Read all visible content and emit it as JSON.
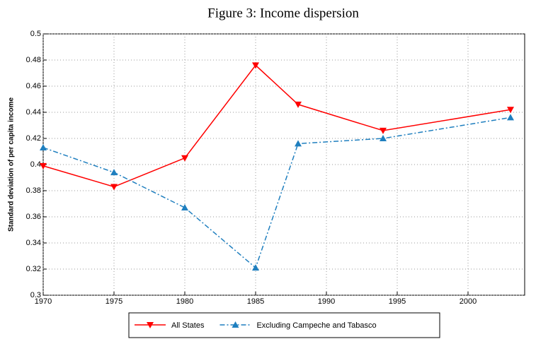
{
  "chart_data": {
    "type": "line",
    "title": "Figure 3: Income dispersion",
    "y_label": "Standard deviation of per capita income",
    "x": [
      1970,
      1975,
      1980,
      1985,
      1988,
      1994,
      2003
    ],
    "series": [
      {
        "name": "All States",
        "color": "#ff0000",
        "marker": "down-triangle",
        "dash": "solid",
        "values": [
          0.399,
          0.383,
          0.405,
          0.476,
          0.446,
          0.426,
          0.442
        ]
      },
      {
        "name": "Excluding Campeche and Tabasco",
        "color": "#1f7fbf",
        "marker": "up-triangle",
        "dash": "dashdot",
        "values": [
          0.413,
          0.394,
          0.367,
          0.321,
          0.416,
          0.42,
          0.436
        ]
      }
    ],
    "xlim": [
      1970,
      2004
    ],
    "xticks": [
      1970,
      1975,
      1980,
      1985,
      1990,
      1995,
      2000
    ],
    "ylim": [
      0.3,
      0.5
    ],
    "yticks": [
      0.3,
      0.32,
      0.34,
      0.36,
      0.38,
      0.4,
      0.42,
      0.44,
      0.46,
      0.48,
      0.5
    ],
    "grid": true,
    "legend": "bottom"
  }
}
